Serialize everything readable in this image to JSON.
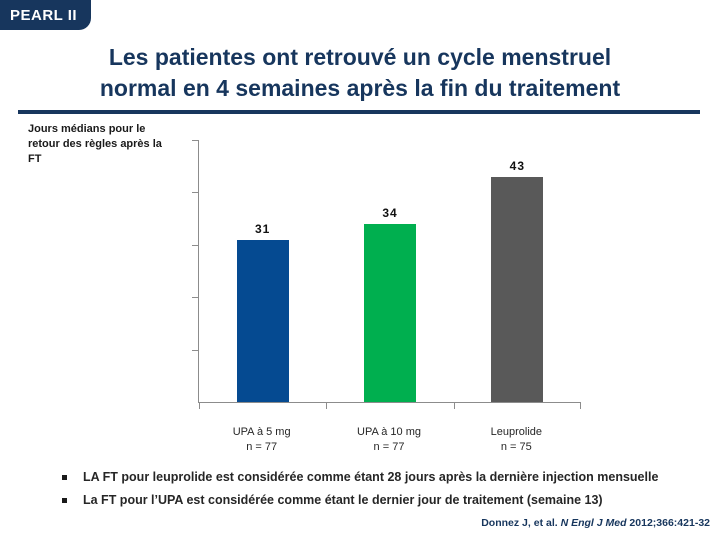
{
  "badge": {
    "label": "PEARL II"
  },
  "title": {
    "line1": "Les patientes ont retrouvé un cycle menstruel",
    "line2": "normal en 4 semaines après la fin du traitement"
  },
  "chart": {
    "axis_label": "Jours médians pour le retour des règles après la FT"
  },
  "chart_data": {
    "type": "bar",
    "title": "Jours médians pour le retour des règles après la FT",
    "categories": [
      "UPA à 5 mg",
      "UPA à 10 mg",
      "Leuprolide"
    ],
    "sublabels": [
      "n = 77",
      "n = 77",
      "n = 75"
    ],
    "values": [
      31,
      34,
      43
    ],
    "bar_colors": [
      "#054A91",
      "#00AF4F",
      "#595959"
    ],
    "xlabel": "",
    "ylabel": "",
    "ylim": [
      0,
      50
    ],
    "ytick_interval": 10,
    "yticks_labeled": false,
    "grid": false,
    "value_labels_shown": true,
    "legend": "none"
  },
  "bullets": [
    "LA FT pour leuprolide est considérée comme étant 28 jours après la dernière injection mensuelle",
    "La FT pour l’UPA est considérée comme étant le dernier jour de traitement (semaine 13)"
  ],
  "citation": {
    "prefix": "Donnez J, et al. ",
    "journal": "N Engl J Med",
    "suffix": " 2012;366:421-32"
  },
  "colors": {
    "navy": "#17365D",
    "axis_gray": "#8c8c8c",
    "bar_blue": "#054A91",
    "bar_green": "#00AF4F",
    "bar_gray": "#595959",
    "text_dark": "#262626"
  }
}
